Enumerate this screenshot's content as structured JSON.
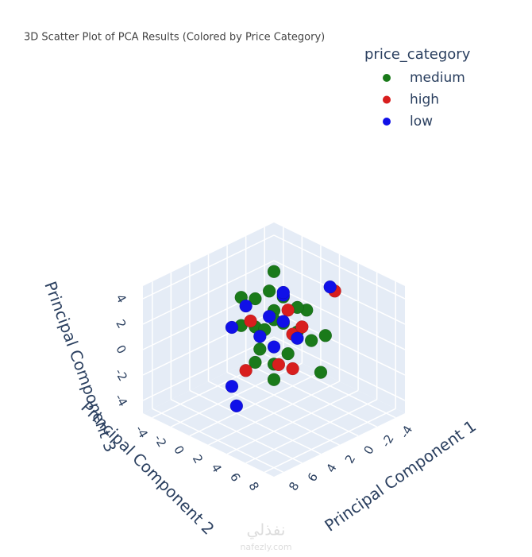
{
  "chart_data": {
    "type": "scatter3d",
    "title": "3D Scatter Plot of PCA Results (Colored by Price Category)",
    "legend_title": "price_category",
    "xlabel": "Principal Component 1",
    "ylabel": "Principal Component 2",
    "zlabel": "Principal Component 3",
    "xlim": [
      -5,
      9
    ],
    "ylim": [
      -5,
      9
    ],
    "zlim": [
      -5,
      5
    ],
    "xticks": [
      -4,
      -2,
      0,
      2,
      4,
      6,
      8
    ],
    "yticks": [
      -4,
      -2,
      0,
      2,
      4,
      6,
      8
    ],
    "zticks": [
      -4,
      -2,
      0,
      2,
      4
    ],
    "grid": true,
    "series": [
      {
        "name": "medium",
        "color": "#1a7a1a",
        "x": [
          -1.0,
          0.5,
          -2.0,
          1.5,
          -0.5,
          2.5,
          -1.5,
          0.0,
          1.0,
          -2.5,
          2.0,
          -0.5,
          0.5,
          -3.0,
          1.5,
          -1.0,
          3.0,
          0.0,
          -2.0,
          2.5,
          1.0,
          -1.5
        ],
        "y": [
          -1.0,
          0.5,
          1.5,
          -2.0,
          2.0,
          -1.0,
          -0.5,
          1.0,
          2.5,
          0.0,
          0.5,
          -2.5,
          -1.5,
          2.5,
          1.5,
          3.0,
          1.0,
          -0.5,
          -2.0,
          2.5,
          0.0,
          3.5
        ],
        "z": [
          4.0,
          2.0,
          1.5,
          2.5,
          0.5,
          1.0,
          2.0,
          1.0,
          -0.5,
          1.0,
          -0.5,
          1.5,
          0.0,
          -0.5,
          -1.5,
          0.0,
          -1.0,
          3.0,
          -0.5,
          -2.0,
          0.5,
          -2.5
        ]
      },
      {
        "name": "high",
        "color": "#d81e1e",
        "x": [
          -3.5,
          -1.0,
          1.5,
          0.0,
          2.0,
          -2.0,
          1.0,
          3.0
        ],
        "y": [
          3.0,
          0.5,
          -1.0,
          2.0,
          2.5,
          1.0,
          3.0,
          0.0
        ],
        "z": [
          3.0,
          1.5,
          1.0,
          0.5,
          -1.0,
          0.0,
          -1.5,
          -2.0
        ]
      },
      {
        "name": "low",
        "color": "#1010e8",
        "x": [
          -3.0,
          -1.0,
          0.5,
          1.5,
          -0.5,
          2.0,
          -2.0,
          0.0,
          5.5,
          6.0,
          1.0,
          2.5
        ],
        "y": [
          3.0,
          0.0,
          1.5,
          -1.5,
          2.0,
          0.5,
          -1.0,
          -0.5,
          1.0,
          2.0,
          1.0,
          -2.0
        ],
        "z": [
          3.5,
          2.5,
          1.5,
          2.0,
          0.0,
          0.5,
          2.0,
          1.0,
          -2.0,
          -3.0,
          -0.5,
          0.5
        ]
      }
    ],
    "watermark": [
      "نفذلي",
      "nafezly.com"
    ]
  }
}
